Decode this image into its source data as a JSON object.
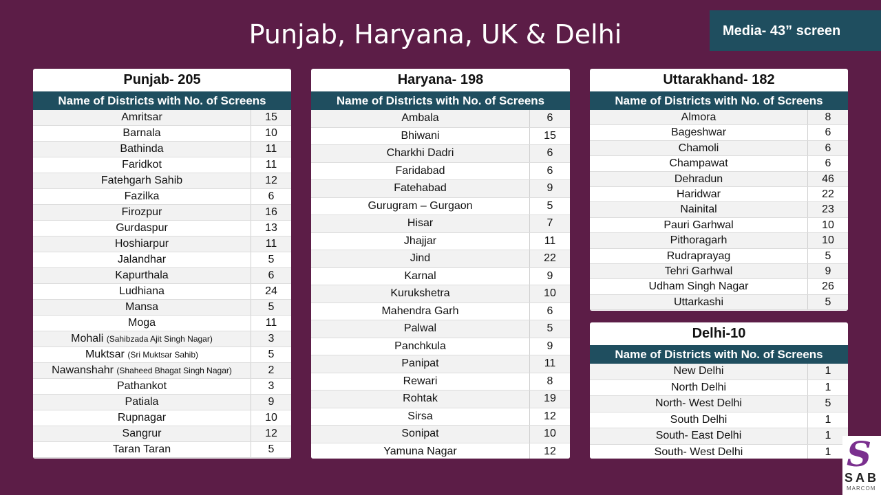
{
  "title": "Punjab, Haryana, UK & Delhi",
  "media_badge": "Media- 43” screen",
  "column_header": "Name of Districts  with No. of Screens",
  "punjab": {
    "title": "Punjab- 205",
    "rows": [
      {
        "name": "Amritsar",
        "note": "",
        "count": "15"
      },
      {
        "name": "Barnala",
        "note": "",
        "count": "10"
      },
      {
        "name": "Bathinda",
        "note": "",
        "count": "11"
      },
      {
        "name": "Faridkot",
        "note": "",
        "count": "11"
      },
      {
        "name": "Fatehgarh Sahib",
        "note": "",
        "count": "12"
      },
      {
        "name": "Fazilka",
        "note": "",
        "count": "6"
      },
      {
        "name": "Firozpur",
        "note": "",
        "count": "16"
      },
      {
        "name": "Gurdaspur",
        "note": "",
        "count": "13"
      },
      {
        "name": "Hoshiarpur",
        "note": "",
        "count": "11"
      },
      {
        "name": "Jalandhar",
        "note": "",
        "count": "5"
      },
      {
        "name": "Kapurthala",
        "note": "",
        "count": "6"
      },
      {
        "name": "Ludhiana",
        "note": "",
        "count": "24"
      },
      {
        "name": "Mansa",
        "note": "",
        "count": "5"
      },
      {
        "name": "Moga",
        "note": "",
        "count": "11"
      },
      {
        "name": "Mohali",
        "note": "(Sahibzada Ajit Singh Nagar)",
        "count": "3"
      },
      {
        "name": "Muktsar",
        "note": "(Sri Muktsar Sahib)",
        "count": "5"
      },
      {
        "name": "Nawanshahr",
        "note": "(Shaheed Bhagat Singh Nagar)",
        "count": "2"
      },
      {
        "name": "Pathankot",
        "note": "",
        "count": "3"
      },
      {
        "name": "Patiala",
        "note": "",
        "count": "9"
      },
      {
        "name": "Rupnagar",
        "note": "",
        "count": "10"
      },
      {
        "name": "Sangrur",
        "note": "",
        "count": "12"
      },
      {
        "name": "Taran Taran",
        "note": "",
        "count": "5"
      }
    ]
  },
  "haryana": {
    "title": "Haryana- 198",
    "rows": [
      {
        "name": "Ambala",
        "note": "",
        "count": "6"
      },
      {
        "name": "Bhiwani",
        "note": "",
        "count": "15"
      },
      {
        "name": "Charkhi Dadri",
        "note": "",
        "count": "6"
      },
      {
        "name": "Faridabad",
        "note": "",
        "count": "6"
      },
      {
        "name": "Fatehabad",
        "note": "",
        "count": "9"
      },
      {
        "name": "Gurugram – Gurgaon",
        "note": "",
        "count": "5"
      },
      {
        "name": "Hisar",
        "note": "",
        "count": "7"
      },
      {
        "name": "Jhajjar",
        "note": "",
        "count": "11"
      },
      {
        "name": "Jind",
        "note": "",
        "count": "22"
      },
      {
        "name": "Karnal",
        "note": "",
        "count": "9"
      },
      {
        "name": "Kurukshetra",
        "note": "",
        "count": "10"
      },
      {
        "name": "Mahendra Garh",
        "note": "",
        "count": "6"
      },
      {
        "name": "Palwal",
        "note": "",
        "count": "5"
      },
      {
        "name": "Panchkula",
        "note": "",
        "count": "9"
      },
      {
        "name": "Panipat",
        "note": "",
        "count": "11"
      },
      {
        "name": "Rewari",
        "note": "",
        "count": "8"
      },
      {
        "name": "Rohtak",
        "note": "",
        "count": "19"
      },
      {
        "name": "Sirsa",
        "note": "",
        "count": "12"
      },
      {
        "name": "Sonipat",
        "note": "",
        "count": "10"
      },
      {
        "name": "Yamuna Nagar",
        "note": "",
        "count": "12"
      }
    ]
  },
  "uttarakhand": {
    "title": "Uttarakhand- 182",
    "rows": [
      {
        "name": "Almora",
        "note": "",
        "count": "8"
      },
      {
        "name": "Bageshwar",
        "note": "",
        "count": "6"
      },
      {
        "name": "Chamoli",
        "note": "",
        "count": "6"
      },
      {
        "name": "Champawat",
        "note": "",
        "count": "6"
      },
      {
        "name": "Dehradun",
        "note": "",
        "count": "46"
      },
      {
        "name": "Haridwar",
        "note": "",
        "count": "22"
      },
      {
        "name": "Nainital",
        "note": "",
        "count": "23"
      },
      {
        "name": "Pauri Garhwal",
        "note": "",
        "count": "10"
      },
      {
        "name": "Pithoragarh",
        "note": "",
        "count": "10"
      },
      {
        "name": "Rudraprayag",
        "note": "",
        "count": "5"
      },
      {
        "name": "Tehri Garhwal",
        "note": "",
        "count": "9"
      },
      {
        "name": "Udham Singh Nagar",
        "note": "",
        "count": "26"
      },
      {
        "name": "Uttarkashi",
        "note": "",
        "count": "5"
      }
    ]
  },
  "delhi": {
    "title": "Delhi-10",
    "rows": [
      {
        "name": "New Delhi",
        "note": "",
        "count": "1"
      },
      {
        "name": "North Delhi",
        "note": "",
        "count": "1"
      },
      {
        "name": "North- West Delhi",
        "note": "",
        "count": "5"
      },
      {
        "name": "South Delhi",
        "note": "",
        "count": "1"
      },
      {
        "name": "South- East Delhi",
        "note": "",
        "count": "1"
      },
      {
        "name": "South- West Delhi",
        "note": "",
        "count": "1"
      }
    ]
  },
  "logo": {
    "letter": "S",
    "text": "SAB",
    "subtext": "MARCOM"
  }
}
